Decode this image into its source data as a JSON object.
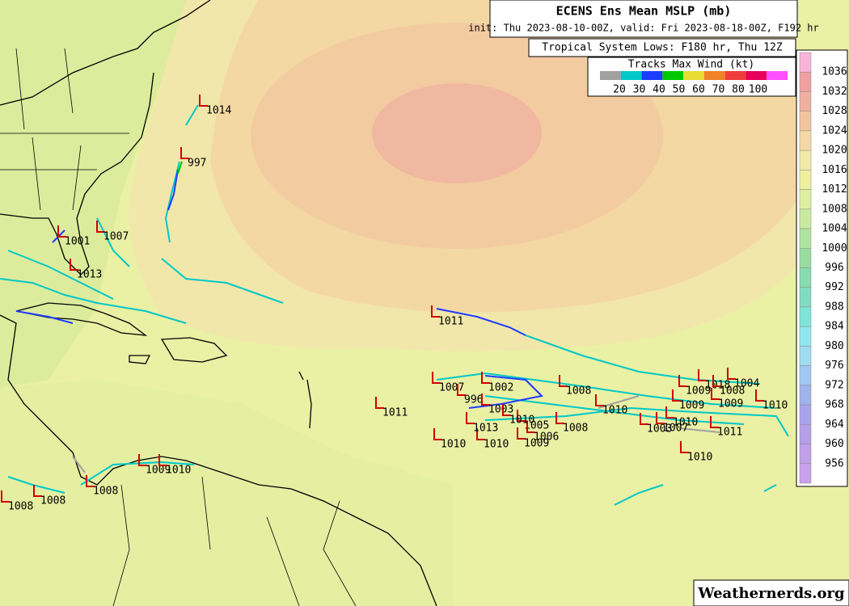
{
  "header": {
    "title": "ECENS Ens Mean MSLP (mb)",
    "subtitle": "init: Thu 2023-08-10-00Z, valid: Fri 2023-08-18-00Z, F192 hr"
  },
  "legend": {
    "title": "Tropical System Lows: F180 hr, Thu 12Z",
    "wind_title": "Tracks Max Wind (kt)",
    "wind_labels": [
      20,
      30,
      40,
      50,
      60,
      70,
      80,
      100
    ],
    "wind_colors": [
      "#a0a0a0",
      "#00c8c8",
      "#1e3cff",
      "#00c800",
      "#e6dc32",
      "#f08228",
      "#f03c3c",
      "#e6005a",
      "#ff50ff"
    ]
  },
  "colorbar": {
    "labels": [
      1036,
      1032,
      1028,
      1024,
      1020,
      1016,
      1012,
      1008,
      1004,
      1000,
      996,
      992,
      988,
      984,
      980,
      976,
      972,
      968,
      964,
      960,
      956
    ],
    "colors": [
      "#f8b4d8",
      "#f0a0a0",
      "#f0b0a0",
      "#f3c4a0",
      "#f5d8a8",
      "#f2eaa8",
      "#eef0a0",
      "#def0a0",
      "#c8eaa0",
      "#b0e4a0",
      "#98dca0",
      "#88dcb0",
      "#80dcc0",
      "#80e4d8",
      "#90e8ec",
      "#a0dcf0",
      "#a0c8f0",
      "#a0b4ec",
      "#a8a4ec",
      "#b4a0e8",
      "#c0a0e8",
      "#c8a0ec"
    ]
  },
  "lows": [
    1014,
    997,
    1001,
    1007,
    1013,
    1011,
    1007,
    1002,
    996,
    1008,
    1011,
    1003,
    1010,
    1009,
    1009,
    1018,
    1008,
    1004,
    1009,
    1010,
    1010,
    1010,
    1009,
    1008,
    1011,
    1010,
    1005,
    1006,
    1013,
    1010,
    1003,
    1007,
    1010,
    1009,
    1010,
    1008,
    1008,
    1008
  ],
  "watermark": "Weathernerds.org"
}
